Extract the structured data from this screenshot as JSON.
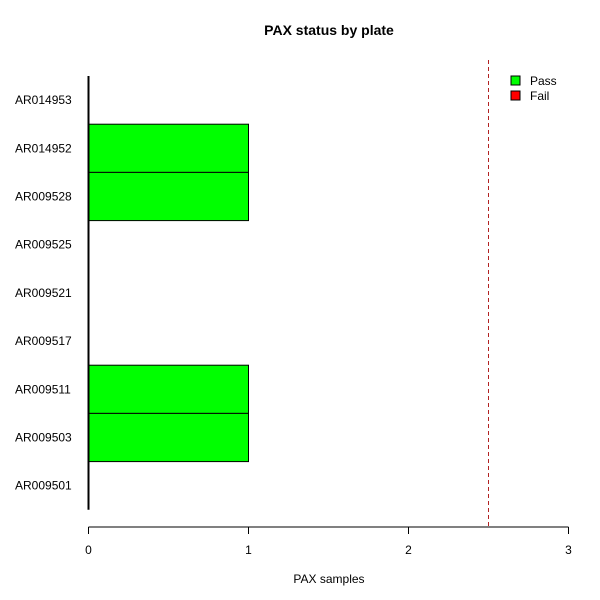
{
  "chart_data": {
    "type": "bar",
    "orientation": "horizontal",
    "title": "PAX status by plate",
    "xlabel": "PAX samples",
    "ylabel": "",
    "xlim": [
      0,
      3
    ],
    "xticks": [
      "0",
      "1",
      "2",
      "3"
    ],
    "categories": [
      "AR014953",
      "AR014952",
      "AR009528",
      "AR009525",
      "AR009521",
      "AR009517",
      "AR009511",
      "AR009503",
      "AR009501"
    ],
    "series": [
      {
        "name": "Pass",
        "color": "#00ff00",
        "values": [
          0,
          1,
          1,
          0,
          0,
          0,
          1,
          1,
          0
        ]
      },
      {
        "name": "Fail",
        "color": "#ff0000",
        "values": [
          0,
          0,
          0,
          0,
          0,
          0,
          0,
          0,
          0
        ]
      }
    ],
    "reference_line": {
      "x": 2.5,
      "color": "#b22222",
      "style": "dashed"
    },
    "legend": {
      "position": "top-right",
      "entries": [
        "Pass",
        "Fail"
      ]
    },
    "grid": false
  }
}
